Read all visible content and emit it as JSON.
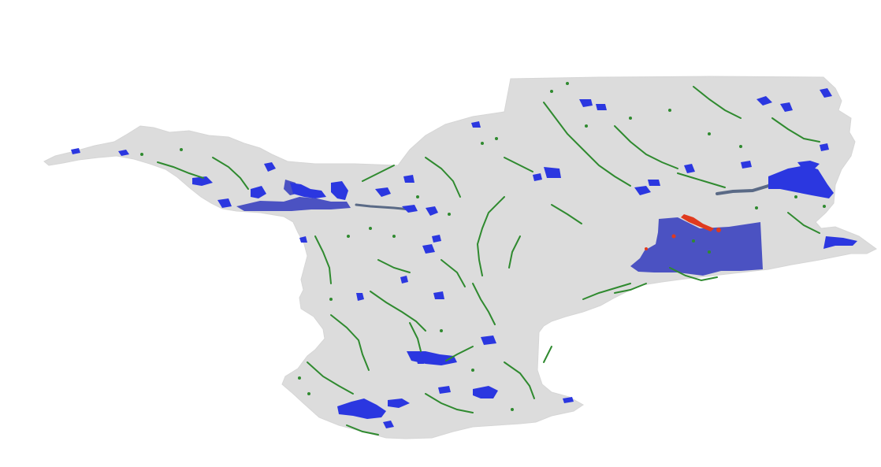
{
  "map": {
    "background": "#ffffff",
    "land_color": "#dcdcdc",
    "water_color": "#2b37e0",
    "reservoir_color": "#4b52c2",
    "vegetation_color": "#2f8a2f",
    "highlight_color": "#e03a1e",
    "river_color": "#5a6a86"
  }
}
